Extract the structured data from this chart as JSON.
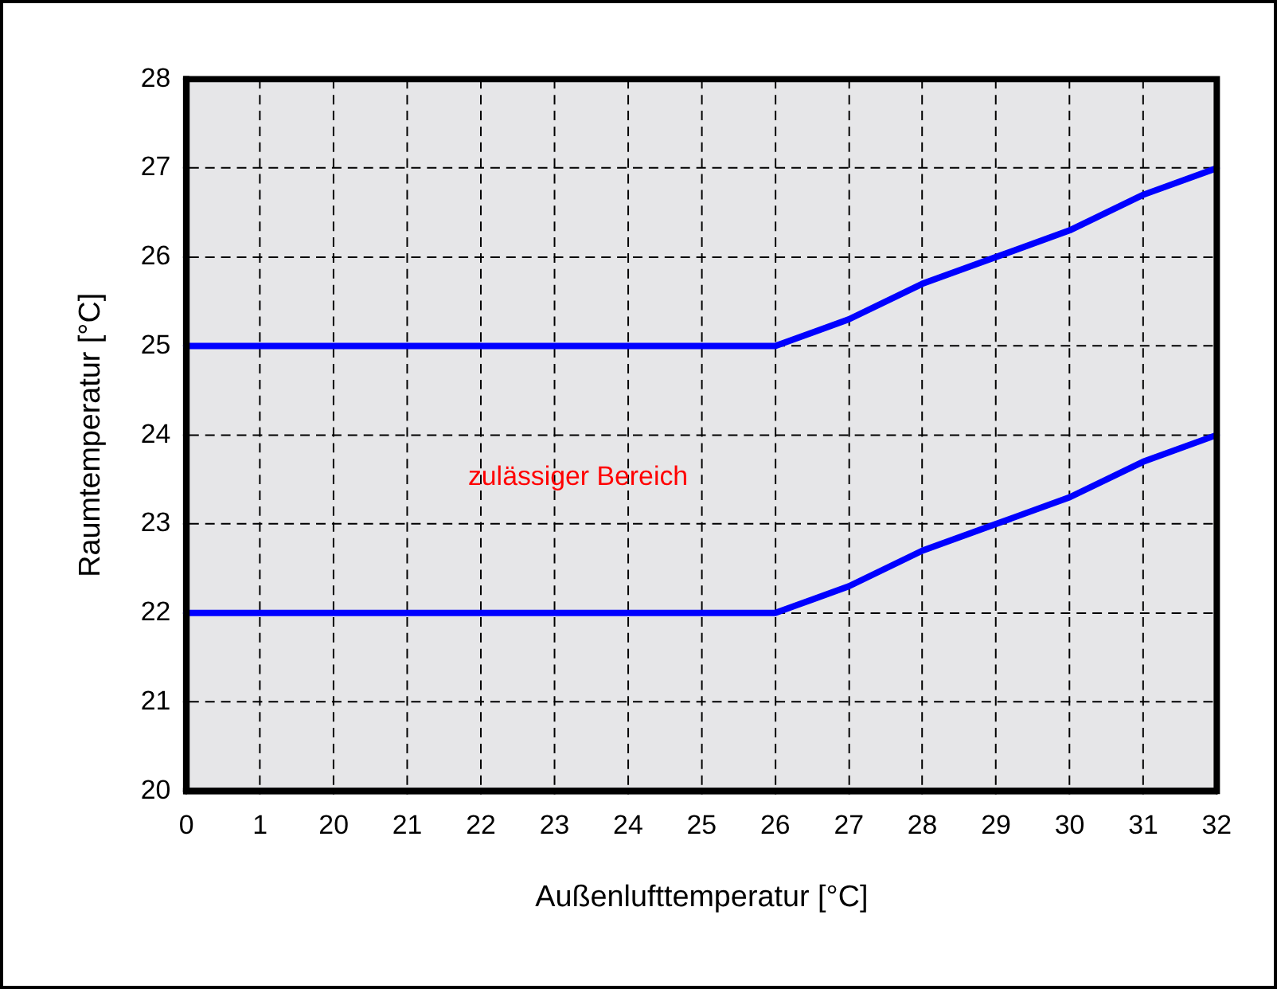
{
  "chart_data": {
    "type": "line",
    "xlabel": "Außenlufttemperatur [°C]",
    "ylabel": "Raumtemperatur [°C]",
    "categories": [
      "0",
      "1",
      "20",
      "21",
      "22",
      "23",
      "24",
      "25",
      "26",
      "27",
      "28",
      "29",
      "30",
      "31",
      "32"
    ],
    "series": [
      {
        "color": "#0000ff",
        "values": [
          25,
          25,
          25,
          25,
          25,
          25,
          25,
          25,
          25,
          25.3,
          25.7,
          26,
          26.3,
          26.7,
          27
        ]
      },
      {
        "color": "#0000ff",
        "values": [
          22,
          22,
          22,
          22,
          22,
          22,
          22,
          22,
          22,
          22.3,
          22.7,
          23,
          23.3,
          23.7,
          24
        ]
      }
    ],
    "ylim": [
      20,
      28
    ],
    "yticks": [
      20,
      21,
      22,
      23,
      24,
      25,
      26,
      27,
      28
    ],
    "grid": true,
    "legend": false,
    "marker": "none",
    "line_style": "solid",
    "annotations": [
      "zulässiger Bereich"
    ]
  }
}
